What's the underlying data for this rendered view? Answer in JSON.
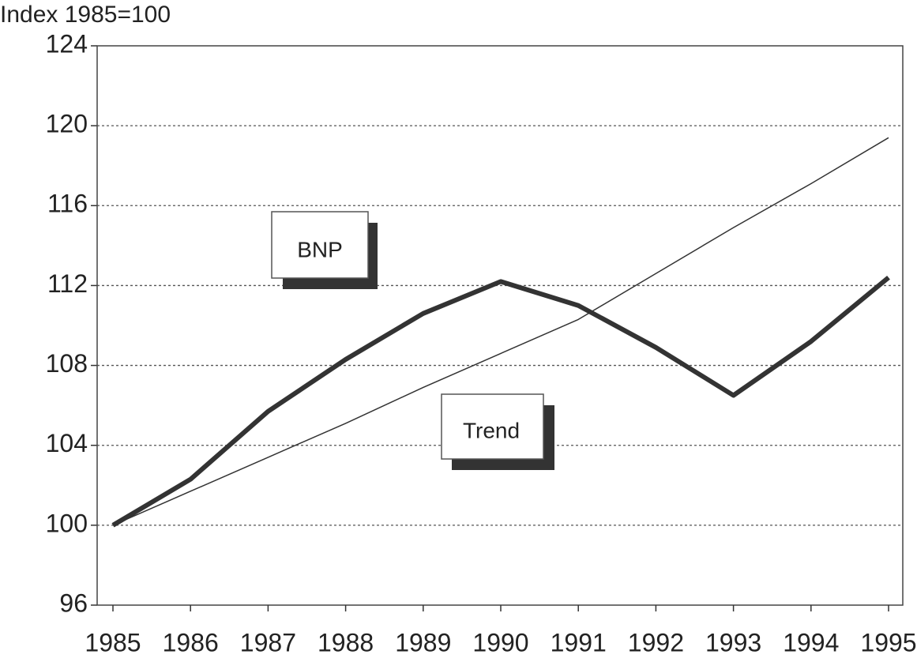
{
  "chart_data": {
    "type": "line",
    "y_label": "Index 1985=100",
    "x": [
      1985,
      1986,
      1987,
      1988,
      1989,
      1990,
      1991,
      1992,
      1993,
      1994,
      1995
    ],
    "xlim": [
      1985,
      1995
    ],
    "series": [
      {
        "name": "BNP",
        "color": "#333333",
        "values": [
          100,
          102.3,
          105.7,
          108.3,
          110.6,
          112.2,
          111.0,
          108.9,
          106.5,
          109.2,
          112.4
        ]
      },
      {
        "name": "Trend",
        "color": "#333333",
        "values": [
          100,
          101.7,
          103.4,
          105.1,
          106.9,
          108.6,
          110.3,
          112.6,
          114.9,
          117.1,
          119.4
        ]
      }
    ],
    "ylim": [
      96,
      124
    ],
    "yticks": [
      96,
      100,
      104,
      108,
      112,
      116,
      120,
      124
    ],
    "grid": true
  }
}
